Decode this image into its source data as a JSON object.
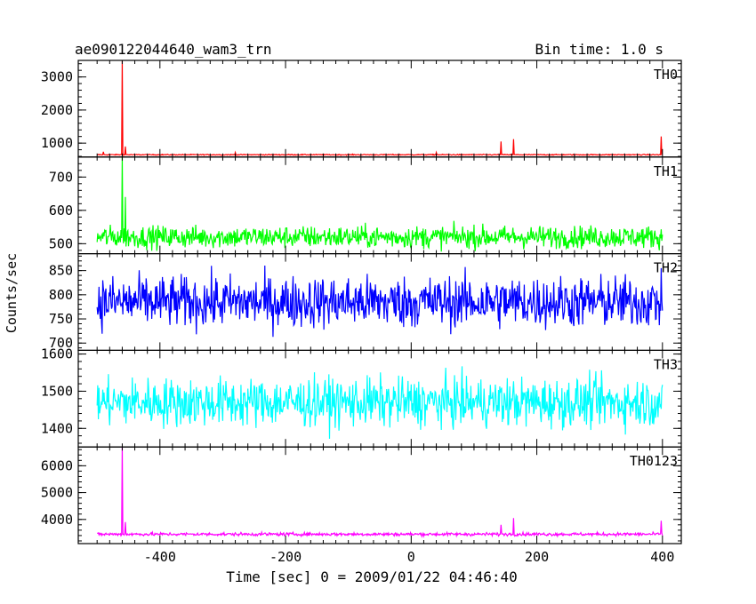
{
  "header": {
    "title": "ae090122044640_wam3_trn",
    "bin_time": "Bin time: 1.0 s"
  },
  "chart_data": {
    "type": "line",
    "xlabel": "Time [sec] 0 = 2009/01/22 04:46:40",
    "ylabel": "Counts/sec",
    "xlim": [
      -530,
      430
    ],
    "xticks": [
      -400,
      -200,
      0,
      200,
      400
    ],
    "x_range": [
      -500,
      400
    ],
    "bin_time_s": 1.0,
    "panels": [
      {
        "name": "TH0",
        "color": "#ff0000",
        "ylim": [
          580,
          3500
        ],
        "yticks": [
          1000,
          2000,
          3000
        ],
        "baseline": 650,
        "noise": 12,
        "spikes": [
          [
            -460,
            3500
          ],
          [
            -455,
            900
          ],
          [
            -490,
            740
          ],
          [
            -280,
            720
          ],
          [
            40,
            720
          ],
          [
            143,
            1050
          ],
          [
            163,
            1120
          ],
          [
            398,
            1200
          ]
        ]
      },
      {
        "name": "TH1",
        "color": "#00ff00",
        "ylim": [
          470,
          760
        ],
        "yticks": [
          500,
          600,
          700
        ],
        "baseline": 520,
        "noise": 28,
        "spikes": [
          [
            -460,
            760
          ],
          [
            -455,
            640
          ]
        ]
      },
      {
        "name": "TH2",
        "color": "#0000ff",
        "ylim": [
          685,
          885
        ],
        "yticks": [
          700,
          750,
          800,
          850
        ],
        "baseline": 785,
        "noise": 45,
        "spikes": []
      },
      {
        "name": "TH3",
        "color": "#00ffff",
        "ylim": [
          1350,
          1610
        ],
        "yticks": [
          1400,
          1500,
          1600
        ],
        "baseline": 1470,
        "noise": 55,
        "spikes": []
      },
      {
        "name": "TH0123",
        "color": "#ff00ff",
        "ylim": [
          3100,
          6700
        ],
        "yticks": [
          4000,
          5000,
          6000
        ],
        "baseline": 3450,
        "noise": 50,
        "spikes": [
          [
            -460,
            6700
          ],
          [
            -455,
            3900
          ],
          [
            143,
            3800
          ],
          [
            163,
            4050
          ],
          [
            398,
            3950
          ]
        ]
      }
    ]
  }
}
